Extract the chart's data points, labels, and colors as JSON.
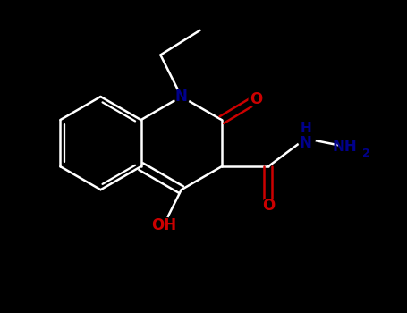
{
  "bg_color": "#000000",
  "bond_color": "#ffffff",
  "N_color": "#00008B",
  "O_color": "#CC0000",
  "figsize": [
    4.55,
    3.5
  ],
  "dpi": 100,
  "lw": 1.8,
  "fs_label": 12,
  "fs_sub": 9,
  "xlim": [
    0,
    9
  ],
  "ylim": [
    0,
    7
  ]
}
